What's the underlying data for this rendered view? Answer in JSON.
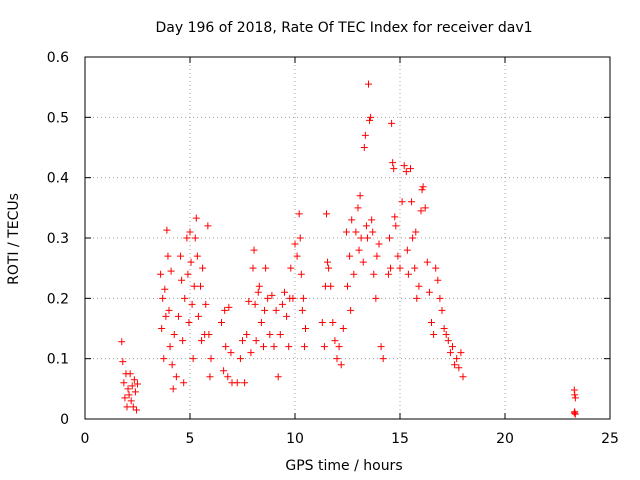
{
  "chart_data": {
    "type": "scatter",
    "title": "Day 196 of 2018, Rate Of TEC Index for receiver dav1",
    "xlabel": "GPS time / hours",
    "ylabel": "ROTI / TECUs",
    "xlim": [
      0,
      25
    ],
    "ylim": [
      0,
      0.6
    ],
    "x_ticks": [
      0,
      5,
      10,
      15,
      20,
      25
    ],
    "x_tick_labels": [
      "0",
      "5",
      "10",
      "15",
      "20",
      "25"
    ],
    "y_ticks": [
      0,
      0.1,
      0.2,
      0.3,
      0.4,
      0.5,
      0.6
    ],
    "y_tick_labels": [
      "0",
      "0.1",
      "0.2",
      "0.3",
      "0.4",
      "0.5",
      "0.6"
    ],
    "grid": true,
    "legend": "none",
    "marker": "+",
    "color": "#ff0000",
    "series": [
      {
        "points": [
          [
            1.75,
            0.128
          ],
          [
            1.8,
            0.095
          ],
          [
            1.85,
            0.06
          ],
          [
            1.9,
            0.035
          ],
          [
            1.95,
            0.075
          ],
          [
            2.0,
            0.02
          ],
          [
            2.05,
            0.05
          ],
          [
            2.1,
            0.04
          ],
          [
            2.15,
            0.075
          ],
          [
            2.2,
            0.03
          ],
          [
            2.25,
            0.055
          ],
          [
            2.3,
            0.02
          ],
          [
            2.35,
            0.065
          ],
          [
            2.4,
            0.045
          ],
          [
            2.45,
            0.015
          ],
          [
            2.5,
            0.058
          ],
          [
            3.6,
            0.24
          ],
          [
            3.65,
            0.15
          ],
          [
            3.7,
            0.2
          ],
          [
            3.75,
            0.1
          ],
          [
            3.8,
            0.215
          ],
          [
            3.85,
            0.17
          ],
          [
            3.9,
            0.313
          ],
          [
            3.95,
            0.27
          ],
          [
            4.0,
            0.18
          ],
          [
            4.05,
            0.12
          ],
          [
            4.1,
            0.245
          ],
          [
            4.15,
            0.09
          ],
          [
            4.2,
            0.05
          ],
          [
            4.25,
            0.14
          ],
          [
            4.35,
            0.07
          ],
          [
            4.45,
            0.17
          ],
          [
            4.55,
            0.27
          ],
          [
            4.6,
            0.23
          ],
          [
            4.65,
            0.13
          ],
          [
            4.7,
            0.06
          ],
          [
            4.75,
            0.2
          ],
          [
            4.85,
            0.3
          ],
          [
            4.9,
            0.24
          ],
          [
            4.95,
            0.16
          ],
          [
            5.0,
            0.31
          ],
          [
            5.05,
            0.26
          ],
          [
            5.1,
            0.19
          ],
          [
            5.15,
            0.1
          ],
          [
            5.2,
            0.22
          ],
          [
            5.25,
            0.3
          ],
          [
            5.3,
            0.333
          ],
          [
            5.35,
            0.27
          ],
          [
            5.4,
            0.17
          ],
          [
            5.5,
            0.22
          ],
          [
            5.55,
            0.13
          ],
          [
            5.6,
            0.25
          ],
          [
            5.7,
            0.14
          ],
          [
            5.75,
            0.19
          ],
          [
            5.85,
            0.32
          ],
          [
            5.9,
            0.14
          ],
          [
            5.95,
            0.07
          ],
          [
            6.0,
            0.1
          ],
          [
            6.5,
            0.16
          ],
          [
            6.6,
            0.08
          ],
          [
            6.65,
            0.18
          ],
          [
            6.7,
            0.12
          ],
          [
            6.8,
            0.07
          ],
          [
            6.85,
            0.185
          ],
          [
            6.95,
            0.11
          ],
          [
            7.0,
            0.06
          ],
          [
            7.25,
            0.06
          ],
          [
            7.4,
            0.1
          ],
          [
            7.5,
            0.13
          ],
          [
            7.6,
            0.06
          ],
          [
            7.7,
            0.14
          ],
          [
            7.8,
            0.195
          ],
          [
            7.9,
            0.11
          ],
          [
            8.0,
            0.25
          ],
          [
            8.05,
            0.28
          ],
          [
            8.1,
            0.19
          ],
          [
            8.15,
            0.13
          ],
          [
            8.25,
            0.21
          ],
          [
            8.3,
            0.22
          ],
          [
            8.4,
            0.16
          ],
          [
            8.5,
            0.12
          ],
          [
            8.55,
            0.18
          ],
          [
            8.6,
            0.25
          ],
          [
            8.7,
            0.2
          ],
          [
            8.8,
            0.14
          ],
          [
            8.9,
            0.205
          ],
          [
            9.0,
            0.12
          ],
          [
            9.1,
            0.18
          ],
          [
            9.2,
            0.07
          ],
          [
            9.3,
            0.14
          ],
          [
            9.4,
            0.19
          ],
          [
            9.5,
            0.21
          ],
          [
            9.6,
            0.17
          ],
          [
            9.7,
            0.12
          ],
          [
            9.75,
            0.2
          ],
          [
            9.8,
            0.25
          ],
          [
            9.9,
            0.2
          ],
          [
            10.0,
            0.29
          ],
          [
            10.1,
            0.27
          ],
          [
            10.2,
            0.34
          ],
          [
            10.25,
            0.3
          ],
          [
            10.3,
            0.24
          ],
          [
            10.35,
            0.18
          ],
          [
            10.4,
            0.2
          ],
          [
            10.45,
            0.12
          ],
          [
            10.5,
            0.15
          ],
          [
            11.3,
            0.16
          ],
          [
            11.4,
            0.12
          ],
          [
            11.45,
            0.22
          ],
          [
            11.5,
            0.34
          ],
          [
            11.55,
            0.26
          ],
          [
            11.6,
            0.25
          ],
          [
            11.7,
            0.22
          ],
          [
            11.8,
            0.16
          ],
          [
            11.9,
            0.13
          ],
          [
            12.0,
            0.1
          ],
          [
            12.1,
            0.12
          ],
          [
            12.2,
            0.09
          ],
          [
            12.3,
            0.15
          ],
          [
            12.45,
            0.31
          ],
          [
            12.5,
            0.22
          ],
          [
            12.6,
            0.27
          ],
          [
            12.65,
            0.18
          ],
          [
            12.7,
            0.33
          ],
          [
            12.8,
            0.24
          ],
          [
            12.9,
            0.31
          ],
          [
            13.0,
            0.35
          ],
          [
            13.05,
            0.28
          ],
          [
            13.1,
            0.37
          ],
          [
            13.15,
            0.3
          ],
          [
            13.25,
            0.26
          ],
          [
            13.3,
            0.45
          ],
          [
            13.35,
            0.47
          ],
          [
            13.4,
            0.32
          ],
          [
            13.45,
            0.3
          ],
          [
            13.5,
            0.555
          ],
          [
            13.55,
            0.495
          ],
          [
            13.6,
            0.5
          ],
          [
            13.65,
            0.33
          ],
          [
            13.7,
            0.31
          ],
          [
            13.75,
            0.24
          ],
          [
            13.85,
            0.2
          ],
          [
            13.9,
            0.27
          ],
          [
            14.0,
            0.29
          ],
          [
            14.1,
            0.12
          ],
          [
            14.2,
            0.1
          ],
          [
            14.45,
            0.24
          ],
          [
            14.5,
            0.3
          ],
          [
            14.55,
            0.25
          ],
          [
            14.6,
            0.49
          ],
          [
            14.65,
            0.425
          ],
          [
            14.7,
            0.415
          ],
          [
            14.75,
            0.335
          ],
          [
            14.8,
            0.32
          ],
          [
            14.9,
            0.27
          ],
          [
            15.0,
            0.25
          ],
          [
            15.1,
            0.36
          ],
          [
            15.2,
            0.42
          ],
          [
            15.3,
            0.41
          ],
          [
            15.35,
            0.28
          ],
          [
            15.4,
            0.24
          ],
          [
            15.5,
            0.415
          ],
          [
            15.55,
            0.36
          ],
          [
            15.6,
            0.3
          ],
          [
            15.7,
            0.25
          ],
          [
            15.75,
            0.31
          ],
          [
            15.8,
            0.2
          ],
          [
            15.9,
            0.22
          ],
          [
            16.0,
            0.345
          ],
          [
            16.05,
            0.38
          ],
          [
            16.1,
            0.385
          ],
          [
            16.2,
            0.35
          ],
          [
            16.3,
            0.26
          ],
          [
            16.4,
            0.21
          ],
          [
            16.5,
            0.16
          ],
          [
            16.6,
            0.14
          ],
          [
            16.7,
            0.25
          ],
          [
            16.8,
            0.23
          ],
          [
            16.9,
            0.2
          ],
          [
            17.0,
            0.18
          ],
          [
            17.1,
            0.15
          ],
          [
            17.2,
            0.14
          ],
          [
            17.3,
            0.13
          ],
          [
            17.4,
            0.11
          ],
          [
            17.5,
            0.12
          ],
          [
            17.6,
            0.09
          ],
          [
            17.7,
            0.1
          ],
          [
            17.8,
            0.085
          ],
          [
            17.9,
            0.11
          ],
          [
            18.0,
            0.07
          ],
          [
            23.3,
            0.048
          ],
          [
            23.32,
            0.04
          ],
          [
            23.35,
            0.035
          ],
          [
            23.3,
            0.01
          ],
          [
            23.35,
            0.008
          ],
          [
            23.32,
            0.012
          ]
        ]
      }
    ]
  }
}
